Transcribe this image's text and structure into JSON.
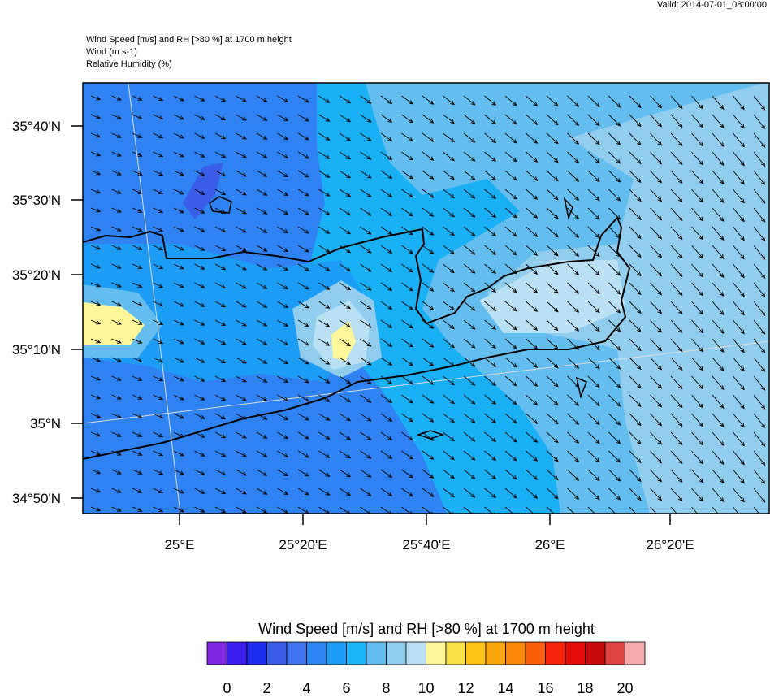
{
  "valid": "Valid: 2014-07-01_08:00:00",
  "header": {
    "lines": [
      "Wind Speed [m/s] and RH [>80 %] at 1700 m height",
      "Wind   (m s-1)",
      "Relative Humidity   (%)"
    ]
  },
  "map": {
    "lat_labels": [
      "35°40'N",
      "35°30'N",
      "35°20'N",
      "35°10'N",
      "35°N",
      "34°50'N"
    ],
    "lon_labels": [
      "25°E",
      "25°20'E",
      "25°40'E",
      "26°E",
      "26°20'E"
    ]
  },
  "colorbar": {
    "title": "Wind Speed [m/s] and RH [>80 %] at 1700 m height",
    "colors": [
      "#7f26e0",
      "#3a1ff0",
      "#1e2ff0",
      "#3a5ee8",
      "#3f74ec",
      "#2c85f2",
      "#1c9cf5",
      "#1ab3f7",
      "#63bdee",
      "#92cdee",
      "#b9e1f3",
      "#fdf79a",
      "#f9e14a",
      "#fcc316",
      "#fba60d",
      "#fb870b",
      "#fa5e0a",
      "#f5240b",
      "#e40b0b",
      "#c80b0b",
      "#dd4545",
      "#f4aaaa"
    ],
    "labels": [
      "0",
      "2",
      "4",
      "6",
      "8",
      "10",
      "12",
      "14",
      "16",
      "18",
      "20"
    ]
  }
}
